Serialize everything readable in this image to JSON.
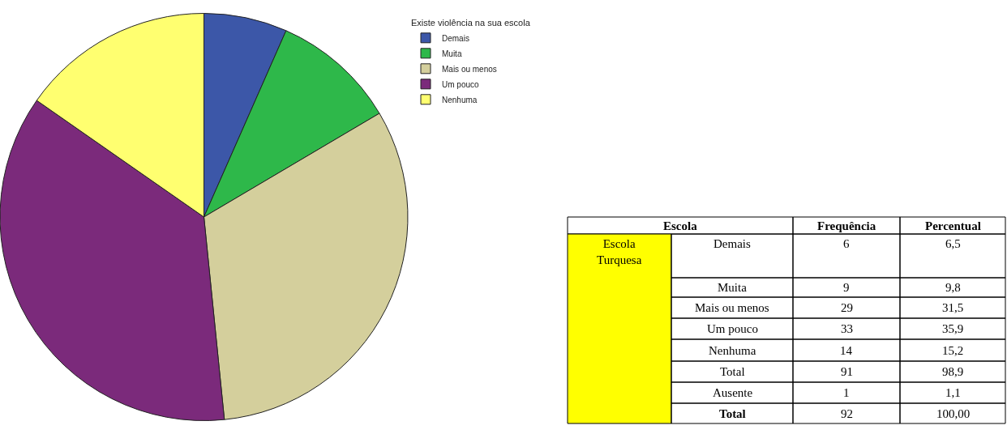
{
  "chart_data": [
    {
      "type": "pie",
      "legend_title": "Existe violência na sua escola",
      "legend": "top right",
      "categories": [
        "Demais",
        "Muita",
        "Mais ou menos",
        "Um pouco",
        "Nenhuma"
      ],
      "values": [
        6.6,
        9.9,
        31.9,
        36.3,
        15.3
      ],
      "colors": [
        "#3c57a8",
        "#2eb84a",
        "#d4cf9c",
        "#7b2a7b",
        "#ffff70"
      ]
    },
    {
      "type": "other",
      "annotations": [
        "Escola",
        "Frequência",
        "Percentual",
        "Escola Turquesa",
        "Demais",
        "6",
        "6,5",
        "Muita",
        "9",
        "9,8",
        "Mais ou menos",
        "29",
        "31,5",
        "Um pouco",
        "33",
        "35,9",
        "Nenhuma",
        "14",
        "15,2",
        "Total",
        "91",
        "98,9",
        "Ausente",
        "1",
        "1,1",
        "Total",
        "92",
        "100,00"
      ]
    }
  ]
}
